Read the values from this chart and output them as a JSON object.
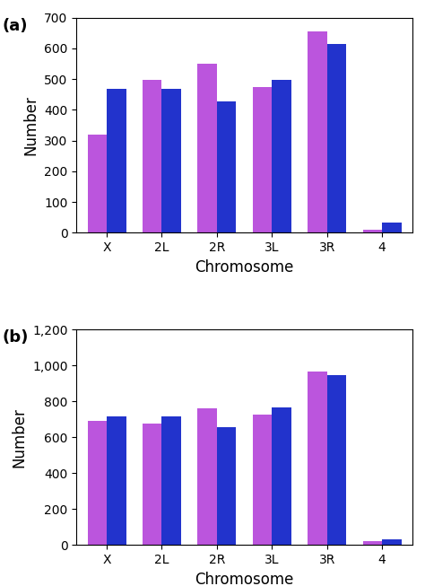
{
  "panel_a": {
    "label": "(a)",
    "categories": [
      "X",
      "2L",
      "2R",
      "3L",
      "3R",
      "4"
    ],
    "purple_values": [
      320,
      497,
      550,
      475,
      655,
      10
    ],
    "blue_values": [
      468,
      468,
      428,
      498,
      615,
      33
    ],
    "ylim": [
      0,
      700
    ],
    "yticks": [
      0,
      100,
      200,
      300,
      400,
      500,
      600,
      700
    ],
    "ylabel": "Number",
    "xlabel": "Chromosome"
  },
  "panel_b": {
    "label": "(b)",
    "categories": [
      "X",
      "2L",
      "2R",
      "3L",
      "3R",
      "4"
    ],
    "purple_values": [
      693,
      678,
      760,
      727,
      968,
      20
    ],
    "blue_values": [
      718,
      718,
      655,
      765,
      945,
      32
    ],
    "ylim": [
      0,
      1200
    ],
    "yticks": [
      0,
      200,
      400,
      600,
      800,
      1000,
      1200
    ],
    "ylabel": "Number",
    "xlabel": "Chromosome"
  },
  "purple_color": "#BB55DD",
  "blue_color": "#2233CC",
  "bar_width": 0.35,
  "bg_color": "#ffffff",
  "tick_fontsize": 10,
  "axis_label_fontsize": 12,
  "panel_label_fontsize": 13
}
